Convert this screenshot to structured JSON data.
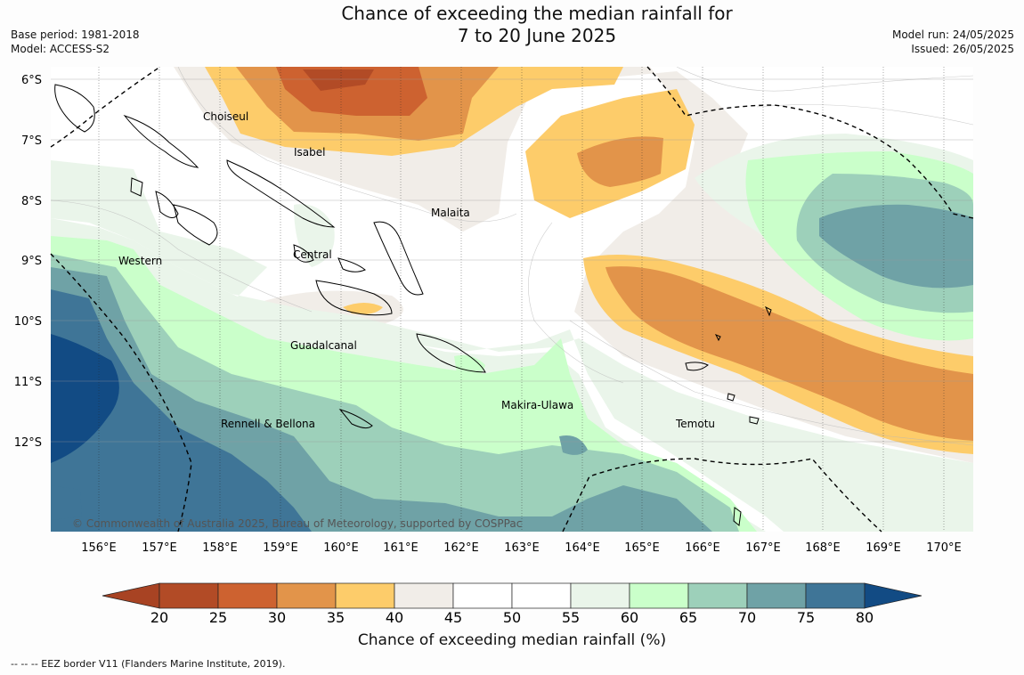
{
  "title_line1": "Chance of exceeding the median rainfall for",
  "title_line2": "7 to 20 June 2025",
  "meta_left": [
    "Base period: 1981-2018",
    "Model: ACCESS-S2"
  ],
  "meta_right": [
    "Model run: 24/05/2025",
    "Issued: 26/05/2025"
  ],
  "map": {
    "lon_labels": [
      "156°E",
      "157°E",
      "158°E",
      "159°E",
      "160°E",
      "161°E",
      "162°E",
      "163°E",
      "164°E",
      "165°E",
      "166°E",
      "167°E",
      "168°E",
      "169°E",
      "170°E"
    ],
    "lat_labels": [
      "6°S",
      "7°S",
      "8°S",
      "9°S",
      "10°S",
      "11°S",
      "12°S"
    ],
    "regions": [
      "Choiseul",
      "Isabel",
      "Malaita",
      "Central",
      "Western",
      "Guadalcanal",
      "Makira-Ulawa",
      "Rennell & Bellona",
      "Temotu"
    ],
    "copyright": "© Commonwealth of Australia 2025, Bureau of Meteorology, supported by COSPPac"
  },
  "colorbar": {
    "ticks": [
      "20",
      "25",
      "30",
      "35",
      "40",
      "45",
      "50",
      "55",
      "60",
      "65",
      "70",
      "75",
      "80"
    ],
    "colors": [
      "#a84323",
      "#b24b26",
      "#cd6230",
      "#e2944a",
      "#fdcc6a",
      "#f1ede8",
      "#ffffff",
      "#ffffff",
      "#eaf5ea",
      "#caffca",
      "#9dd0ba",
      "#6fa2a6",
      "#3f7597",
      "#124b84"
    ],
    "title": "Chance of exceeding median rainfall (%)"
  },
  "footnote": "--  --  -- EEZ border V11 (Flanders Marine Institute, 2019)."
}
